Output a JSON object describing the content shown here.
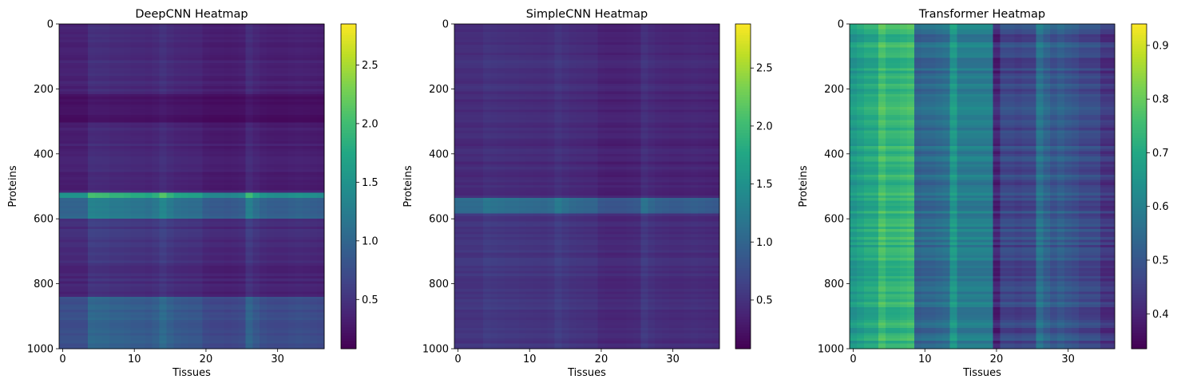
{
  "chart_data": [
    {
      "type": "heatmap",
      "title": "DeepCNN Heatmap",
      "xlabel": "Tissues",
      "ylabel": "Proteins",
      "x_ticks": [
        0,
        10,
        20,
        30
      ],
      "y_ticks": [
        0,
        200,
        400,
        600,
        800,
        1000
      ],
      "xlim": [
        -0.5,
        36.5
      ],
      "ylim": [
        1000,
        0
      ],
      "colormap": "viridis",
      "colorbar_range": [
        0.08,
        2.85
      ],
      "colorbar_ticks": [
        0.5,
        1.0,
        1.5,
        2.0,
        2.5
      ],
      "tissue_profile": [
        0.3,
        0.3,
        0.3,
        0.3,
        0.58,
        0.56,
        0.55,
        0.5,
        0.5,
        0.48,
        0.45,
        0.45,
        0.42,
        0.48,
        0.62,
        0.5,
        0.42,
        0.4,
        0.38,
        0.38,
        0.25,
        0.22,
        0.22,
        0.2,
        0.22,
        0.25,
        0.55,
        0.4,
        0.3,
        0.26,
        0.25,
        0.25,
        0.28,
        0.3,
        0.28,
        0.26,
        0.24
      ],
      "protein_bands": [
        {
          "rows": [
            0,
            210
          ],
          "value": 0.4
        },
        {
          "rows": [
            210,
            300
          ],
          "value": 0.22
        },
        {
          "rows": [
            300,
            520
          ],
          "value": 0.38
        },
        {
          "rows": [
            520,
            530
          ],
          "value": 1.7
        },
        {
          "rows": [
            530,
            600
          ],
          "value": 1.1
        },
        {
          "rows": [
            600,
            730
          ],
          "value": 0.5
        },
        {
          "rows": [
            730,
            840
          ],
          "value": 0.42
        },
        {
          "rows": [
            840,
            1000
          ],
          "value": 0.85
        }
      ]
    },
    {
      "type": "heatmap",
      "title": "SimpleCNN Heatmap",
      "xlabel": "Tissues",
      "ylabel": "Proteins",
      "x_ticks": [
        0,
        10,
        20,
        30
      ],
      "y_ticks": [
        0,
        200,
        400,
        600,
        800,
        1000
      ],
      "xlim": [
        -0.5,
        36.5
      ],
      "ylim": [
        1000,
        0
      ],
      "colormap": "viridis",
      "colorbar_range": [
        0.08,
        2.88
      ],
      "colorbar_ticks": [
        0.5,
        1.0,
        1.5,
        2.0,
        2.5
      ],
      "tissue_profile": [
        0.35,
        0.35,
        0.35,
        0.35,
        0.45,
        0.42,
        0.4,
        0.38,
        0.38,
        0.36,
        0.35,
        0.34,
        0.33,
        0.36,
        0.48,
        0.4,
        0.34,
        0.32,
        0.3,
        0.3,
        0.18,
        0.16,
        0.16,
        0.16,
        0.18,
        0.2,
        0.42,
        0.32,
        0.26,
        0.24,
        0.22,
        0.22,
        0.24,
        0.26,
        0.24,
        0.22,
        0.2
      ],
      "protein_bands": [
        {
          "rows": [
            0,
            200
          ],
          "value": 0.5
        },
        {
          "rows": [
            200,
            530
          ],
          "value": 0.45
        },
        {
          "rows": [
            530,
            580
          ],
          "value": 1.15
        },
        {
          "rows": [
            580,
            1000
          ],
          "value": 0.55
        }
      ]
    },
    {
      "type": "heatmap",
      "title": "Transformer Heatmap",
      "xlabel": "Tissues",
      "ylabel": "Proteins",
      "x_ticks": [
        0,
        10,
        20,
        30
      ],
      "y_ticks": [
        0,
        200,
        400,
        600,
        800,
        1000
      ],
      "xlim": [
        -0.5,
        36.5
      ],
      "ylim": [
        1000,
        0
      ],
      "colormap": "viridis",
      "colorbar_range": [
        0.335,
        0.94
      ],
      "colorbar_ticks": [
        0.4,
        0.5,
        0.6,
        0.7,
        0.8,
        0.9
      ],
      "tissue_profile": [
        0.66,
        0.68,
        0.7,
        0.7,
        0.76,
        0.73,
        0.73,
        0.74,
        0.75,
        0.53,
        0.54,
        0.54,
        0.55,
        0.56,
        0.66,
        0.59,
        0.59,
        0.59,
        0.59,
        0.59,
        0.4,
        0.47,
        0.47,
        0.46,
        0.47,
        0.47,
        0.57,
        0.53,
        0.5,
        0.52,
        0.5,
        0.49,
        0.47,
        0.47,
        0.47,
        0.43,
        0.43
      ],
      "protein_bands": []
    }
  ]
}
